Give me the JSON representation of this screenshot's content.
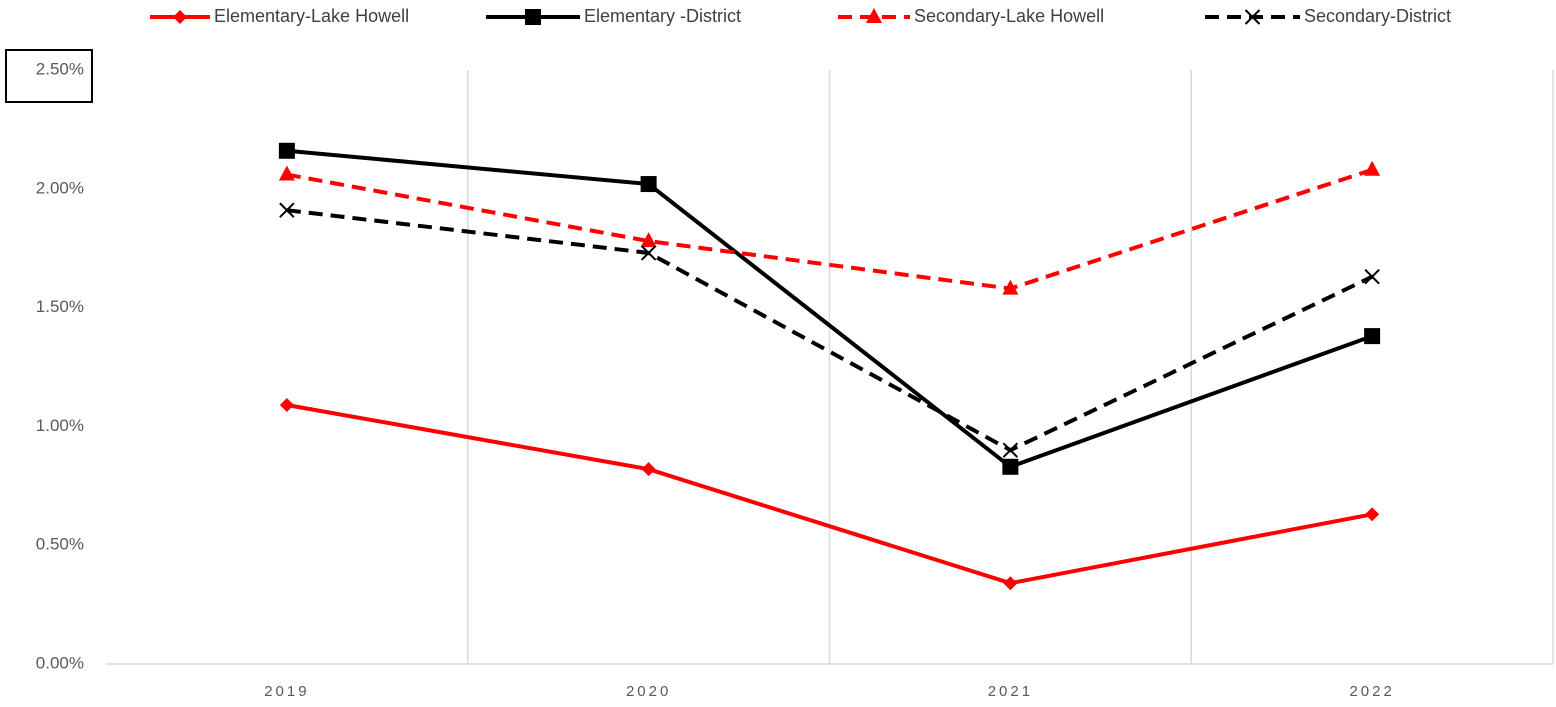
{
  "chart_data": {
    "type": "line",
    "categories": [
      "2019",
      "2020",
      "2021",
      "2022"
    ],
    "series": [
      {
        "name": "Elementary-Lake Howell",
        "color": "#ff0000",
        "dash": false,
        "marker": "diamond",
        "values": [
          1.09,
          0.82,
          0.34,
          0.63
        ]
      },
      {
        "name": "Elementary -District",
        "color": "#000000",
        "dash": false,
        "marker": "square",
        "values": [
          2.16,
          2.02,
          0.83,
          1.38
        ]
      },
      {
        "name": "Secondary-Lake Howell",
        "color": "#ff0000",
        "dash": true,
        "marker": "triangle",
        "values": [
          2.06,
          1.78,
          1.58,
          2.08
        ]
      },
      {
        "name": "Secondary-District",
        "color": "#000000",
        "dash": true,
        "marker": "x",
        "values": [
          1.91,
          1.73,
          0.9,
          1.63
        ]
      }
    ],
    "ylim": [
      0,
      2.5
    ],
    "yticks": [
      {
        "value": 0,
        "label": "0.00%"
      },
      {
        "value": 0.5,
        "label": "0.50%"
      },
      {
        "value": 1,
        "label": "1.00%"
      },
      {
        "value": 1.5,
        "label": "1.50%"
      },
      {
        "value": 2,
        "label": "2.00%"
      },
      {
        "value": 2.5,
        "label": "2.50%"
      }
    ],
    "grid": "x",
    "legend": "top"
  }
}
